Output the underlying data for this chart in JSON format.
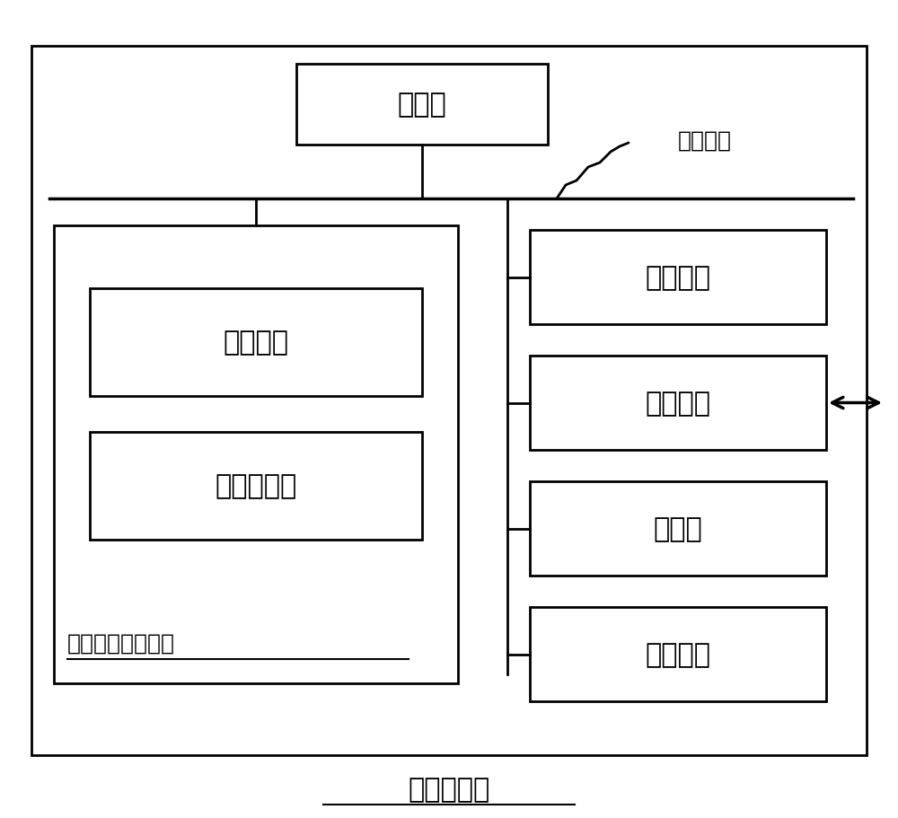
{
  "bg_color": "#ffffff",
  "border_color": "#000000",
  "text_color": "#000000",
  "title": "计算机设备",
  "processor_label": "处理器",
  "system_bus_label": "系统总线",
  "nonvolatile_label": "非易失性存储介质",
  "os_label": "操作系统",
  "program_label": "计算机程序",
  "memory_label": "内存储器",
  "network_label": "网络接口",
  "display_label": "显示屏",
  "input_label": "输入装置",
  "font_size_large": 22,
  "font_size_medium": 18,
  "font_size_small": 16
}
